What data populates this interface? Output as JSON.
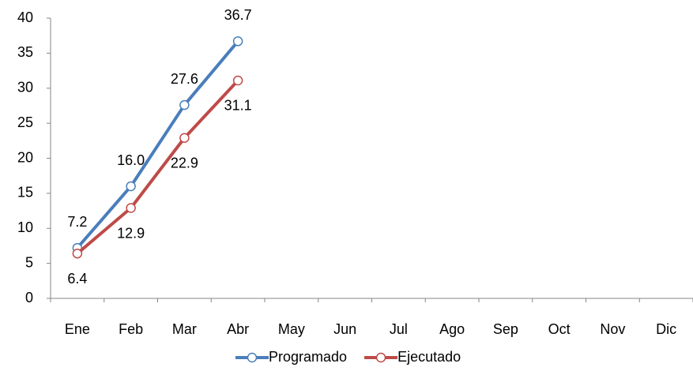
{
  "chart_data": {
    "type": "line",
    "categories": [
      "Ene",
      "Feb",
      "Mar",
      "Abr",
      "May",
      "Jun",
      "Jul",
      "Ago",
      "Sep",
      "Oct",
      "Nov",
      "Dic"
    ],
    "series": [
      {
        "name": "Programado",
        "color": "#4a7ebb",
        "values": [
          7.2,
          16.0,
          27.6,
          36.7,
          null,
          null,
          null,
          null,
          null,
          null,
          null,
          null
        ],
        "value_labels": [
          "7.2",
          "16.0",
          "27.6",
          "36.7",
          null,
          null,
          null,
          null,
          null,
          null,
          null,
          null
        ]
      },
      {
        "name": "Ejecutado",
        "color": "#be4b48",
        "values": [
          6.4,
          12.9,
          22.9,
          31.1,
          null,
          null,
          null,
          null,
          null,
          null,
          null,
          null
        ],
        "value_labels": [
          "6.4",
          "12.9",
          "22.9",
          "31.1",
          null,
          null,
          null,
          null,
          null,
          null,
          null,
          null
        ]
      }
    ],
    "ylim": [
      0,
      40
    ],
    "yticks": [
      0,
      5,
      10,
      15,
      20,
      25,
      30,
      35,
      40
    ],
    "grid": false,
    "legend": "bottom"
  }
}
